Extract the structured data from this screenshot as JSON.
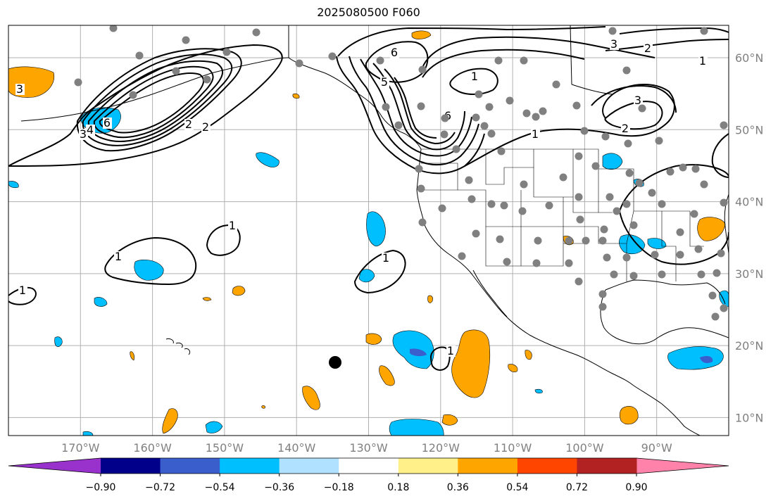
{
  "title": "2025080500 F060",
  "map": {
    "projection": "PlateCarree",
    "lon_range": [
      -180,
      -80
    ],
    "lat_range": [
      7.5,
      64.5
    ],
    "background": "#ffffff",
    "lat_labels": [
      "10°N",
      "20°N",
      "30°N",
      "40°N",
      "50°N",
      "60°N"
    ],
    "lon_labels": [
      "170°W",
      "160°W",
      "150°W",
      "140°W",
      "130°W",
      "120°W",
      "110°W",
      "100°W",
      "90°W"
    ],
    "contour_labels": [
      "1",
      "1",
      "1",
      "1",
      "1",
      "1",
      "1",
      "1",
      "2",
      "2",
      "2",
      "2",
      "3",
      "3",
      "3",
      "3",
      "4",
      "5",
      "6",
      "6",
      "6"
    ],
    "station_marker_color": "#808080",
    "center_marker_color": "#000000"
  },
  "colorbar": {
    "colors": [
      "#9932cc",
      "#00008b",
      "#3a5fcd",
      "#00bfff",
      "#b0e2ff",
      "#ffffff",
      "#fff08a",
      "#ffa500",
      "#ff4500",
      "#b22222",
      "#ff82ab"
    ],
    "tick_labels": [
      "−0.90",
      "−0.72",
      "−0.54",
      "−0.36",
      "−0.18",
      "0.18",
      "0.36",
      "0.54",
      "0.72",
      "0.90"
    ],
    "levels": [
      -0.9,
      -0.72,
      -0.54,
      -0.36,
      -0.18,
      0.18,
      0.36,
      0.54,
      0.72,
      0.9
    ]
  }
}
